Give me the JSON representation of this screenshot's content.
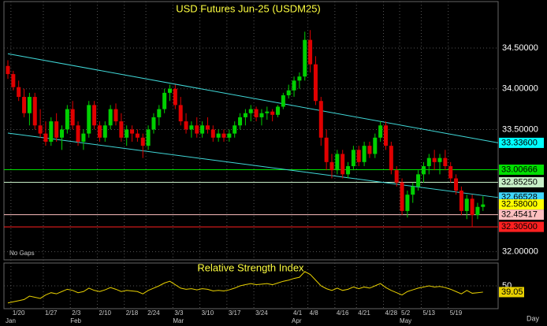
{
  "chart_data": {
    "type": "candlestick",
    "title": "USD Futures Jun-25 (USDM25)",
    "note": "No Gaps",
    "x_axis_label": "Day",
    "up_color": "#00d000",
    "down_color": "#e00000",
    "grid": true,
    "ylim": [
      31.9,
      35.07
    ],
    "yticks": [
      {
        "value": 32,
        "label": "32.00000"
      },
      {
        "value": 33.5,
        "label": "33.50000"
      },
      {
        "value": 34,
        "label": "34.00000"
      },
      {
        "value": 34.5,
        "label": "34.50000"
      }
    ],
    "categories": [
      null,
      "1/20",
      null,
      null,
      null,
      null,
      null,
      "1/27",
      null,
      null,
      null,
      null,
      "2/3",
      null,
      null,
      null,
      null,
      "2/10",
      null,
      null,
      null,
      null,
      "2/18",
      null,
      null,
      null,
      "2/24",
      null,
      null,
      null,
      null,
      "3/3",
      null,
      null,
      null,
      null,
      "3/10",
      null,
      null,
      null,
      null,
      "3/17",
      null,
      null,
      null,
      null,
      "3/24",
      null,
      null,
      null,
      null,
      null,
      null,
      "4/1",
      null,
      null,
      "4/8",
      null,
      null,
      null,
      null,
      "4/16",
      null,
      null,
      null,
      "4/21",
      null,
      null,
      null,
      null,
      "4/28",
      null,
      null,
      "5/2",
      null,
      null,
      null,
      "5/13",
      null,
      null,
      null,
      null,
      "5/19",
      null,
      null,
      null,
      null,
      null,
      null
    ],
    "months": [
      "Jan",
      null,
      null,
      null,
      null,
      null,
      null,
      null,
      null,
      null,
      null,
      null,
      "Feb",
      null,
      null,
      null,
      null,
      null,
      null,
      null,
      null,
      null,
      null,
      null,
      null,
      null,
      null,
      null,
      null,
      null,
      null,
      "Mar",
      null,
      null,
      null,
      null,
      null,
      null,
      null,
      null,
      null,
      null,
      null,
      null,
      null,
      null,
      null,
      null,
      null,
      null,
      null,
      null,
      null,
      "Apr",
      null,
      null,
      null,
      null,
      null,
      null,
      null,
      null,
      null,
      null,
      null,
      null,
      null,
      null,
      null,
      null,
      null,
      null,
      null,
      "May",
      null,
      null,
      null,
      null,
      null,
      null,
      null,
      null,
      null,
      null,
      null,
      null,
      null,
      null,
      null
    ],
    "open": [
      34.28,
      34.18,
      34.02,
      33.9,
      33.7,
      33.9,
      33.55,
      33.45,
      33.35,
      33.6,
      33.4,
      33.5,
      33.75,
      33.55,
      33.35,
      33.45,
      33.8,
      33.55,
      33.4,
      33.55,
      33.75,
      33.6,
      33.4,
      33.5,
      33.45,
      33.4,
      33.3,
      33.5,
      33.65,
      33.75,
      33.95,
      34.0,
      33.8,
      33.6,
      33.5,
      33.55,
      33.45,
      33.55,
      33.5,
      33.4,
      33.45,
      33.4,
      33.45,
      33.55,
      33.65,
      33.7,
      33.75,
      33.65,
      33.7,
      33.72,
      33.68,
      33.78,
      33.92,
      33.98,
      34.1,
      34.15,
      34.6,
      34.3,
      33.85,
      33.4,
      33.1,
      33.0,
      33.2,
      32.95,
      33.05,
      33.25,
      33.1,
      33.3,
      33.2,
      33.4,
      33.55,
      33.3,
      33.0,
      32.85,
      32.5,
      32.7,
      32.8,
      32.95,
      33.05,
      33.15,
      33.1,
      33.15,
      33.05,
      32.9,
      32.75,
      32.5,
      32.65,
      32.45,
      32.55
    ],
    "high": [
      34.35,
      34.22,
      34.1,
      34.0,
      33.95,
      33.95,
      33.75,
      33.6,
      33.65,
      33.7,
      33.55,
      33.8,
      33.85,
      33.6,
      33.5,
      33.85,
      33.85,
      33.6,
      33.6,
      33.8,
      33.82,
      33.7,
      33.55,
      33.55,
      33.5,
      33.45,
      33.55,
      33.7,
      33.8,
      34.0,
      34.05,
      34.05,
      33.9,
      33.7,
      33.6,
      33.65,
      33.6,
      33.65,
      33.55,
      33.5,
      33.5,
      33.5,
      33.6,
      33.7,
      33.75,
      33.8,
      33.78,
      33.75,
      33.78,
      33.75,
      33.8,
      33.95,
      34.05,
      34.15,
      34.2,
      34.7,
      34.72,
      34.4,
      33.9,
      33.5,
      33.2,
      33.25,
      33.25,
      33.1,
      33.3,
      33.3,
      33.35,
      33.35,
      33.45,
      33.6,
      33.6,
      33.35,
      33.05,
      32.9,
      32.75,
      32.85,
      33.0,
      33.1,
      33.2,
      33.25,
      33.2,
      33.25,
      33.1,
      32.95,
      32.8,
      32.7,
      32.7,
      32.6,
      32.68
    ],
    "low": [
      34.12,
      33.98,
      33.85,
      33.65,
      33.55,
      33.5,
      33.4,
      33.3,
      33.3,
      33.35,
      33.25,
      33.45,
      33.5,
      33.3,
      33.25,
      33.4,
      33.5,
      33.35,
      33.35,
      33.5,
      33.55,
      33.35,
      33.3,
      33.35,
      33.35,
      33.15,
      33.25,
      33.45,
      33.55,
      33.7,
      33.85,
      33.75,
      33.55,
      33.45,
      33.4,
      33.4,
      33.4,
      33.45,
      33.35,
      33.35,
      33.35,
      33.35,
      33.4,
      33.5,
      33.55,
      33.6,
      33.6,
      33.55,
      33.62,
      33.6,
      33.65,
      33.75,
      33.88,
      33.9,
      34.0,
      34.1,
      34.2,
      33.8,
      33.3,
      33.0,
      32.9,
      32.95,
      32.9,
      32.9,
      33.0,
      33.05,
      33.05,
      33.15,
      33.15,
      33.35,
      33.25,
      32.95,
      32.8,
      32.45,
      32.42,
      32.6,
      32.75,
      32.85,
      32.95,
      33.0,
      32.95,
      33.0,
      32.85,
      32.7,
      32.45,
      32.4,
      32.3,
      32.4,
      32.5
    ],
    "close": [
      34.18,
      34.02,
      33.9,
      33.7,
      33.9,
      33.55,
      33.45,
      33.35,
      33.6,
      33.4,
      33.5,
      33.75,
      33.55,
      33.35,
      33.45,
      33.8,
      33.55,
      33.4,
      33.55,
      33.75,
      33.6,
      33.4,
      33.5,
      33.45,
      33.4,
      33.3,
      33.5,
      33.65,
      33.75,
      33.95,
      34.0,
      33.8,
      33.6,
      33.5,
      33.55,
      33.45,
      33.55,
      33.5,
      33.4,
      33.45,
      33.4,
      33.45,
      33.55,
      33.65,
      33.7,
      33.75,
      33.65,
      33.7,
      33.72,
      33.68,
      33.78,
      33.92,
      33.98,
      34.1,
      34.15,
      34.6,
      34.3,
      33.85,
      33.4,
      33.1,
      33.0,
      33.2,
      32.95,
      33.05,
      33.25,
      33.1,
      33.3,
      33.2,
      33.4,
      33.55,
      33.3,
      33.0,
      32.85,
      32.5,
      32.7,
      32.8,
      32.95,
      33.05,
      33.15,
      33.1,
      33.15,
      33.05,
      32.9,
      32.75,
      32.5,
      32.65,
      32.45,
      32.55,
      32.58
    ],
    "trendlines": [
      {
        "color": "#40d8d8",
        "y": [
          34.43,
          33.336
        ]
      },
      {
        "color": "#40d8d8",
        "y": [
          33.456,
          32.66528
        ]
      }
    ],
    "price_labels": [
      {
        "value": 33.336,
        "label": "33.33600",
        "color": "#00ffff",
        "line": false
      },
      {
        "value": 33.00666,
        "label": "33.00666",
        "color": "#00e000",
        "line": true
      },
      {
        "value": 32.8525,
        "label": "32.85250",
        "color": "#c8f0c8",
        "line": true
      },
      {
        "value": 32.66528,
        "label": "32.66528",
        "color": "#40d8ff",
        "line": false
      },
      {
        "value": 32.58,
        "label": "32.58000",
        "color": "#ffff00",
        "line": false
      },
      {
        "value": 32.45417,
        "label": "32.45417",
        "color": "#ffc0c0",
        "line": true
      },
      {
        "value": 32.305,
        "label": "32.30500",
        "color": "#ff2020",
        "line": true
      }
    ],
    "rsi": {
      "title": "Relative Strength Index",
      "color": "#e8d000",
      "ylim": [
        10,
        90
      ],
      "yticks": [
        50
      ],
      "last_label": "39.05",
      "values": [
        20,
        22,
        24,
        26,
        32,
        30,
        28,
        34,
        38,
        36,
        40,
        44,
        42,
        38,
        40,
        46,
        42,
        40,
        43,
        47,
        44,
        40,
        42,
        41,
        40,
        36,
        42,
        46,
        50,
        55,
        58,
        52,
        46,
        44,
        45,
        43,
        45,
        44,
        41,
        42,
        41,
        43,
        46,
        50,
        52,
        54,
        52,
        53,
        54,
        52,
        55,
        58,
        60,
        63,
        65,
        75,
        70,
        60,
        50,
        45,
        42,
        46,
        42,
        44,
        48,
        45,
        48,
        46,
        50,
        54,
        47,
        42,
        38,
        34,
        40,
        43,
        46,
        48,
        50,
        48,
        49,
        47,
        44,
        40,
        36,
        42,
        37,
        38,
        39.05
      ]
    }
  }
}
